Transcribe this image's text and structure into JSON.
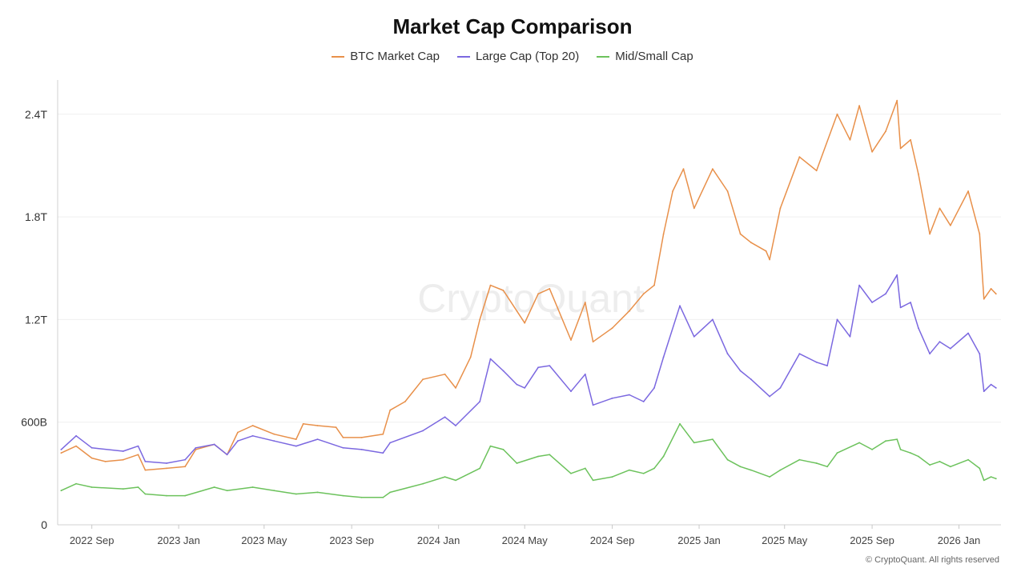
{
  "chart_data": {
    "type": "line",
    "title": "Market Cap Comparison",
    "xlabel": "",
    "ylabel": "",
    "ylim": [
      0,
      2.6
    ],
    "y_ticks": [
      {
        "value": 0,
        "label": "0"
      },
      {
        "value": 0.6,
        "label": "600B"
      },
      {
        "value": 1.2,
        "label": "1.2T"
      },
      {
        "value": 1.8,
        "label": "1.8T"
      },
      {
        "value": 2.4,
        "label": "2.4T"
      }
    ],
    "x_range": [
      "2022-07-15",
      "2026-03-01"
    ],
    "x_ticks": [
      {
        "date": "2022-09-01",
        "label": "2022 Sep"
      },
      {
        "date": "2023-01-01",
        "label": "2023 Jan"
      },
      {
        "date": "2023-05-01",
        "label": "2023 May"
      },
      {
        "date": "2023-09-01",
        "label": "2023 Sep"
      },
      {
        "date": "2024-01-01",
        "label": "2024 Jan"
      },
      {
        "date": "2024-05-01",
        "label": "2024 May"
      },
      {
        "date": "2024-09-01",
        "label": "2024 Sep"
      },
      {
        "date": "2025-01-01",
        "label": "2025 Jan"
      },
      {
        "date": "2025-05-01",
        "label": "2025 May"
      },
      {
        "date": "2025-09-01",
        "label": "2025 Sep"
      },
      {
        "date": "2026-01-01",
        "label": "2026 Jan"
      }
    ],
    "grid": true,
    "legend_position": "top-center",
    "units": "trillion USD",
    "series": [
      {
        "name": "BTC Market Cap",
        "color": "#e8904a",
        "points": [
          [
            "2022-07-20",
            0.42
          ],
          [
            "2022-08-10",
            0.46
          ],
          [
            "2022-09-01",
            0.39
          ],
          [
            "2022-09-20",
            0.37
          ],
          [
            "2022-10-15",
            0.38
          ],
          [
            "2022-11-05",
            0.41
          ],
          [
            "2022-11-15",
            0.32
          ],
          [
            "2022-12-15",
            0.33
          ],
          [
            "2023-01-10",
            0.34
          ],
          [
            "2023-01-25",
            0.44
          ],
          [
            "2023-02-20",
            0.47
          ],
          [
            "2023-03-10",
            0.41
          ],
          [
            "2023-03-25",
            0.54
          ],
          [
            "2023-04-15",
            0.58
          ],
          [
            "2023-05-15",
            0.53
          ],
          [
            "2023-06-15",
            0.5
          ],
          [
            "2023-06-25",
            0.59
          ],
          [
            "2023-07-15",
            0.58
          ],
          [
            "2023-08-10",
            0.57
          ],
          [
            "2023-08-20",
            0.51
          ],
          [
            "2023-09-15",
            0.51
          ],
          [
            "2023-10-15",
            0.53
          ],
          [
            "2023-10-25",
            0.67
          ],
          [
            "2023-11-15",
            0.72
          ],
          [
            "2023-12-10",
            0.85
          ],
          [
            "2024-01-10",
            0.88
          ],
          [
            "2024-01-25",
            0.8
          ],
          [
            "2024-02-15",
            0.98
          ],
          [
            "2024-02-28",
            1.2
          ],
          [
            "2024-03-14",
            1.4
          ],
          [
            "2024-04-01",
            1.37
          ],
          [
            "2024-04-20",
            1.25
          ],
          [
            "2024-05-01",
            1.18
          ],
          [
            "2024-05-20",
            1.35
          ],
          [
            "2024-06-05",
            1.38
          ],
          [
            "2024-07-05",
            1.08
          ],
          [
            "2024-07-25",
            1.3
          ],
          [
            "2024-08-05",
            1.07
          ],
          [
            "2024-09-01",
            1.15
          ],
          [
            "2024-09-25",
            1.25
          ],
          [
            "2024-10-15",
            1.35
          ],
          [
            "2024-10-30",
            1.4
          ],
          [
            "2024-11-12",
            1.7
          ],
          [
            "2024-11-25",
            1.95
          ],
          [
            "2024-12-10",
            2.08
          ],
          [
            "2024-12-25",
            1.85
          ],
          [
            "2025-01-20",
            2.08
          ],
          [
            "2025-02-10",
            1.95
          ],
          [
            "2025-02-28",
            1.7
          ],
          [
            "2025-03-15",
            1.65
          ],
          [
            "2025-04-05",
            1.6
          ],
          [
            "2025-04-10",
            1.55
          ],
          [
            "2025-04-25",
            1.85
          ],
          [
            "2025-05-22",
            2.15
          ],
          [
            "2025-06-15",
            2.07
          ],
          [
            "2025-07-14",
            2.4
          ],
          [
            "2025-08-01",
            2.25
          ],
          [
            "2025-08-14",
            2.45
          ],
          [
            "2025-09-01",
            2.18
          ],
          [
            "2025-09-20",
            2.3
          ],
          [
            "2025-10-06",
            2.48
          ],
          [
            "2025-10-11",
            2.2
          ],
          [
            "2025-10-25",
            2.25
          ],
          [
            "2025-11-05",
            2.05
          ],
          [
            "2025-11-21",
            1.7
          ],
          [
            "2025-12-05",
            1.85
          ],
          [
            "2025-12-20",
            1.75
          ],
          [
            "2026-01-14",
            1.95
          ],
          [
            "2026-01-30",
            1.7
          ],
          [
            "2026-02-05",
            1.32
          ],
          [
            "2026-02-15",
            1.38
          ],
          [
            "2026-02-22",
            1.35
          ]
        ]
      },
      {
        "name": "Large Cap (Top 20)",
        "color": "#7b68e0",
        "points": [
          [
            "2022-07-20",
            0.44
          ],
          [
            "2022-08-10",
            0.52
          ],
          [
            "2022-09-01",
            0.45
          ],
          [
            "2022-10-15",
            0.43
          ],
          [
            "2022-11-05",
            0.46
          ],
          [
            "2022-11-15",
            0.37
          ],
          [
            "2022-12-15",
            0.36
          ],
          [
            "2023-01-10",
            0.38
          ],
          [
            "2023-01-25",
            0.45
          ],
          [
            "2023-02-20",
            0.47
          ],
          [
            "2023-03-10",
            0.41
          ],
          [
            "2023-03-25",
            0.49
          ],
          [
            "2023-04-15",
            0.52
          ],
          [
            "2023-05-15",
            0.49
          ],
          [
            "2023-06-15",
            0.46
          ],
          [
            "2023-07-15",
            0.5
          ],
          [
            "2023-08-20",
            0.45
          ],
          [
            "2023-09-15",
            0.44
          ],
          [
            "2023-10-15",
            0.42
          ],
          [
            "2023-10-25",
            0.48
          ],
          [
            "2023-12-10",
            0.55
          ],
          [
            "2024-01-10",
            0.63
          ],
          [
            "2024-01-25",
            0.58
          ],
          [
            "2024-02-28",
            0.72
          ],
          [
            "2024-03-14",
            0.97
          ],
          [
            "2024-04-01",
            0.9
          ],
          [
            "2024-04-20",
            0.82
          ],
          [
            "2024-05-01",
            0.8
          ],
          [
            "2024-05-20",
            0.92
          ],
          [
            "2024-06-05",
            0.93
          ],
          [
            "2024-07-05",
            0.78
          ],
          [
            "2024-07-25",
            0.88
          ],
          [
            "2024-08-05",
            0.7
          ],
          [
            "2024-09-01",
            0.74
          ],
          [
            "2024-09-25",
            0.76
          ],
          [
            "2024-10-15",
            0.72
          ],
          [
            "2024-10-30",
            0.8
          ],
          [
            "2024-11-12",
            0.98
          ],
          [
            "2024-12-05",
            1.28
          ],
          [
            "2024-12-25",
            1.1
          ],
          [
            "2025-01-20",
            1.2
          ],
          [
            "2025-02-10",
            1.0
          ],
          [
            "2025-02-28",
            0.9
          ],
          [
            "2025-03-15",
            0.85
          ],
          [
            "2025-04-10",
            0.75
          ],
          [
            "2025-04-25",
            0.8
          ],
          [
            "2025-05-22",
            1.0
          ],
          [
            "2025-06-15",
            0.95
          ],
          [
            "2025-06-30",
            0.93
          ],
          [
            "2025-07-14",
            1.2
          ],
          [
            "2025-08-01",
            1.1
          ],
          [
            "2025-08-14",
            1.4
          ],
          [
            "2025-09-01",
            1.3
          ],
          [
            "2025-09-20",
            1.35
          ],
          [
            "2025-10-06",
            1.46
          ],
          [
            "2025-10-11",
            1.27
          ],
          [
            "2025-10-25",
            1.3
          ],
          [
            "2025-11-05",
            1.15
          ],
          [
            "2025-11-21",
            1.0
          ],
          [
            "2025-12-05",
            1.07
          ],
          [
            "2025-12-20",
            1.03
          ],
          [
            "2026-01-14",
            1.12
          ],
          [
            "2026-01-30",
            1.0
          ],
          [
            "2026-02-05",
            0.78
          ],
          [
            "2026-02-15",
            0.82
          ],
          [
            "2026-02-22",
            0.8
          ]
        ]
      },
      {
        "name": "Mid/Small Cap",
        "color": "#6cc25c",
        "points": [
          [
            "2022-07-20",
            0.2
          ],
          [
            "2022-08-10",
            0.24
          ],
          [
            "2022-09-01",
            0.22
          ],
          [
            "2022-10-15",
            0.21
          ],
          [
            "2022-11-05",
            0.22
          ],
          [
            "2022-11-15",
            0.18
          ],
          [
            "2022-12-15",
            0.17
          ],
          [
            "2023-01-10",
            0.17
          ],
          [
            "2023-02-20",
            0.22
          ],
          [
            "2023-03-10",
            0.2
          ],
          [
            "2023-04-15",
            0.22
          ],
          [
            "2023-05-15",
            0.2
          ],
          [
            "2023-06-15",
            0.18
          ],
          [
            "2023-07-15",
            0.19
          ],
          [
            "2023-08-20",
            0.17
          ],
          [
            "2023-09-15",
            0.16
          ],
          [
            "2023-10-15",
            0.16
          ],
          [
            "2023-10-25",
            0.19
          ],
          [
            "2023-12-10",
            0.24
          ],
          [
            "2024-01-10",
            0.28
          ],
          [
            "2024-01-25",
            0.26
          ],
          [
            "2024-02-28",
            0.33
          ],
          [
            "2024-03-14",
            0.46
          ],
          [
            "2024-04-01",
            0.44
          ],
          [
            "2024-04-20",
            0.36
          ],
          [
            "2024-05-20",
            0.4
          ],
          [
            "2024-06-05",
            0.41
          ],
          [
            "2024-07-05",
            0.3
          ],
          [
            "2024-07-25",
            0.33
          ],
          [
            "2024-08-05",
            0.26
          ],
          [
            "2024-09-01",
            0.28
          ],
          [
            "2024-09-25",
            0.32
          ],
          [
            "2024-10-15",
            0.3
          ],
          [
            "2024-10-30",
            0.33
          ],
          [
            "2024-11-12",
            0.4
          ],
          [
            "2024-12-05",
            0.59
          ],
          [
            "2024-12-25",
            0.48
          ],
          [
            "2025-01-20",
            0.5
          ],
          [
            "2025-02-10",
            0.38
          ],
          [
            "2025-02-28",
            0.34
          ],
          [
            "2025-03-15",
            0.32
          ],
          [
            "2025-04-10",
            0.28
          ],
          [
            "2025-04-25",
            0.32
          ],
          [
            "2025-05-22",
            0.38
          ],
          [
            "2025-06-15",
            0.36
          ],
          [
            "2025-06-30",
            0.34
          ],
          [
            "2025-07-14",
            0.42
          ],
          [
            "2025-08-14",
            0.48
          ],
          [
            "2025-09-01",
            0.44
          ],
          [
            "2025-09-20",
            0.49
          ],
          [
            "2025-10-06",
            0.5
          ],
          [
            "2025-10-11",
            0.44
          ],
          [
            "2025-10-25",
            0.42
          ],
          [
            "2025-11-05",
            0.4
          ],
          [
            "2025-11-21",
            0.35
          ],
          [
            "2025-12-05",
            0.37
          ],
          [
            "2025-12-20",
            0.34
          ],
          [
            "2026-01-14",
            0.38
          ],
          [
            "2026-01-30",
            0.33
          ],
          [
            "2026-02-05",
            0.26
          ],
          [
            "2026-02-15",
            0.28
          ],
          [
            "2026-02-22",
            0.27
          ]
        ]
      }
    ]
  },
  "watermark": "CryptoQuant",
  "copyright": "© CryptoQuant. All rights reserved"
}
